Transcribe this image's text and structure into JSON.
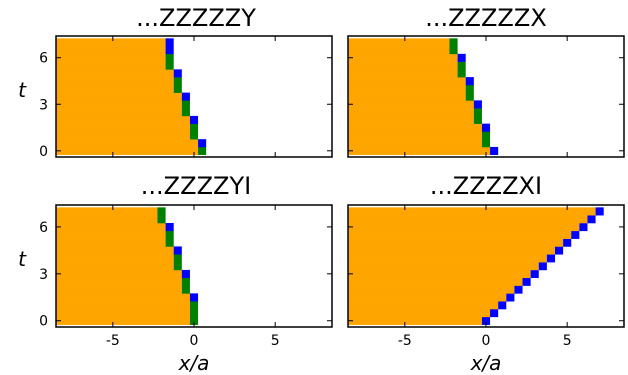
{
  "chart_data": [
    {
      "type": "heatmap",
      "title": "...ZZZZZY",
      "xlabel": "",
      "ylabel": "t",
      "xlim": [
        -8.5,
        8.5
      ],
      "ylim": [
        -0.4,
        7.4
      ],
      "xticks": [
        -5,
        0,
        5
      ],
      "yticks": [
        0,
        3,
        6
      ],
      "xtick_labels": [
        "",
        "",
        ""
      ],
      "ytick_labels": [
        "0",
        "3",
        "6"
      ],
      "colors": {
        "filled": "#FFA500",
        "marker_a": "#008000",
        "marker_b": "#0000FF",
        "empty": "#FFFFFF"
      },
      "rows": [
        {
          "t": 0,
          "edge": 0.75,
          "marker": "marker_a"
        },
        {
          "t": 0.5,
          "edge": 0.75,
          "marker": "marker_b"
        },
        {
          "t": 1,
          "edge": 0.25,
          "marker": "marker_a"
        },
        {
          "t": 1.5,
          "edge": 0.25,
          "marker": "marker_a"
        },
        {
          "t": 2,
          "edge": 0.25,
          "marker": "marker_b"
        },
        {
          "t": 2.5,
          "edge": -0.25,
          "marker": "marker_a"
        },
        {
          "t": 3,
          "edge": -0.25,
          "marker": "marker_a"
        },
        {
          "t": 3.5,
          "edge": -0.25,
          "marker": "marker_b"
        },
        {
          "t": 4,
          "edge": -0.75,
          "marker": "marker_a"
        },
        {
          "t": 4.5,
          "edge": -0.75,
          "marker": "marker_a"
        },
        {
          "t": 5,
          "edge": -0.75,
          "marker": "marker_b"
        },
        {
          "t": 5.5,
          "edge": -1.25,
          "marker": "marker_a"
        },
        {
          "t": 6,
          "edge": -1.25,
          "marker": "marker_a"
        },
        {
          "t": 6.5,
          "edge": -1.25,
          "marker": "marker_b"
        },
        {
          "t": 7,
          "edge": -1.25,
          "marker": "marker_b"
        }
      ]
    },
    {
      "type": "heatmap",
      "title": "...ZZZZZX",
      "xlabel": "",
      "ylabel": "",
      "xlim": [
        -8.5,
        8.5
      ],
      "ylim": [
        -0.4,
        7.4
      ],
      "xticks": [
        -5,
        0,
        5
      ],
      "yticks": [
        0,
        3,
        6
      ],
      "xtick_labels": [
        "",
        "",
        ""
      ],
      "ytick_labels": [
        "",
        "",
        ""
      ],
      "colors": {
        "filled": "#FFA500",
        "marker_a": "#008000",
        "marker_b": "#0000FF",
        "empty": "#FFFFFF"
      },
      "rows": [
        {
          "t": 0,
          "edge": 0.75,
          "marker": "marker_b"
        },
        {
          "t": 0.5,
          "edge": 0.25,
          "marker": "marker_a"
        },
        {
          "t": 1,
          "edge": 0.25,
          "marker": "marker_a"
        },
        {
          "t": 1.5,
          "edge": 0.25,
          "marker": "marker_b"
        },
        {
          "t": 2,
          "edge": -0.25,
          "marker": "marker_a"
        },
        {
          "t": 2.5,
          "edge": -0.25,
          "marker": "marker_a"
        },
        {
          "t": 3,
          "edge": -0.25,
          "marker": "marker_b"
        },
        {
          "t": 3.5,
          "edge": -0.75,
          "marker": "marker_a"
        },
        {
          "t": 4,
          "edge": -0.75,
          "marker": "marker_a"
        },
        {
          "t": 4.5,
          "edge": -0.75,
          "marker": "marker_b"
        },
        {
          "t": 5,
          "edge": -1.25,
          "marker": "marker_a"
        },
        {
          "t": 5.5,
          "edge": -1.25,
          "marker": "marker_a"
        },
        {
          "t": 6,
          "edge": -1.25,
          "marker": "marker_b"
        },
        {
          "t": 6.5,
          "edge": -1.75,
          "marker": "marker_a"
        },
        {
          "t": 7,
          "edge": -1.75,
          "marker": "marker_a"
        }
      ]
    },
    {
      "type": "heatmap",
      "title": "...ZZZZYI",
      "xlabel": "x/a",
      "ylabel": "t",
      "xlim": [
        -8.5,
        8.5
      ],
      "ylim": [
        -0.4,
        7.4
      ],
      "xticks": [
        -5,
        0,
        5
      ],
      "yticks": [
        0,
        3,
        6
      ],
      "xtick_labels": [
        "-5",
        "0",
        "5"
      ],
      "ytick_labels": [
        "0",
        "3",
        "6"
      ],
      "colors": {
        "filled": "#FFA500",
        "marker_a": "#008000",
        "marker_b": "#0000FF",
        "empty": "#FFFFFF"
      },
      "rows": [
        {
          "t": 0,
          "edge": 0.25,
          "marker": "marker_a"
        },
        {
          "t": 0.5,
          "edge": 0.25,
          "marker": "marker_a"
        },
        {
          "t": 1,
          "edge": 0.25,
          "marker": "marker_a"
        },
        {
          "t": 1.5,
          "edge": 0.25,
          "marker": "marker_b"
        },
        {
          "t": 2,
          "edge": -0.25,
          "marker": "marker_a"
        },
        {
          "t": 2.5,
          "edge": -0.25,
          "marker": "marker_a"
        },
        {
          "t": 3,
          "edge": -0.25,
          "marker": "marker_b"
        },
        {
          "t": 3.5,
          "edge": -0.75,
          "marker": "marker_a"
        },
        {
          "t": 4,
          "edge": -0.75,
          "marker": "marker_a"
        },
        {
          "t": 4.5,
          "edge": -0.75,
          "marker": "marker_b"
        },
        {
          "t": 5,
          "edge": -1.25,
          "marker": "marker_a"
        },
        {
          "t": 5.5,
          "edge": -1.25,
          "marker": "marker_a"
        },
        {
          "t": 6,
          "edge": -1.25,
          "marker": "marker_b"
        },
        {
          "t": 6.5,
          "edge": -1.75,
          "marker": "marker_a"
        },
        {
          "t": 7,
          "edge": -1.75,
          "marker": "marker_a"
        }
      ]
    },
    {
      "type": "heatmap",
      "title": "...ZZZZXI",
      "xlabel": "x/a",
      "ylabel": "",
      "xlim": [
        -8.5,
        8.5
      ],
      "ylim": [
        -0.4,
        7.4
      ],
      "xticks": [
        -5,
        0,
        5
      ],
      "yticks": [
        0,
        3,
        6
      ],
      "xtick_labels": [
        "-5",
        "0",
        "5"
      ],
      "ytick_labels": [
        "",
        "",
        ""
      ],
      "colors": {
        "filled": "#FFA500",
        "marker_a": "#008000",
        "marker_b": "#0000FF",
        "empty": "#FFFFFF"
      },
      "rows": [
        {
          "t": 0,
          "edge": 0.25,
          "marker": "marker_b"
        },
        {
          "t": 0.5,
          "edge": 0.75,
          "marker": "marker_b"
        },
        {
          "t": 1,
          "edge": 1.25,
          "marker": "marker_b"
        },
        {
          "t": 1.5,
          "edge": 1.75,
          "marker": "marker_b"
        },
        {
          "t": 2,
          "edge": 2.25,
          "marker": "marker_b"
        },
        {
          "t": 2.5,
          "edge": 2.75,
          "marker": "marker_b"
        },
        {
          "t": 3,
          "edge": 3.25,
          "marker": "marker_b"
        },
        {
          "t": 3.5,
          "edge": 3.75,
          "marker": "marker_b"
        },
        {
          "t": 4,
          "edge": 4.25,
          "marker": "marker_b"
        },
        {
          "t": 4.5,
          "edge": 4.75,
          "marker": "marker_b"
        },
        {
          "t": 5,
          "edge": 5.25,
          "marker": "marker_b"
        },
        {
          "t": 5.5,
          "edge": 5.75,
          "marker": "marker_b"
        },
        {
          "t": 6,
          "edge": 6.25,
          "marker": "marker_b"
        },
        {
          "t": 6.5,
          "edge": 6.75,
          "marker": "marker_b"
        },
        {
          "t": 7,
          "edge": 7.25,
          "marker": "marker_b"
        }
      ]
    }
  ]
}
